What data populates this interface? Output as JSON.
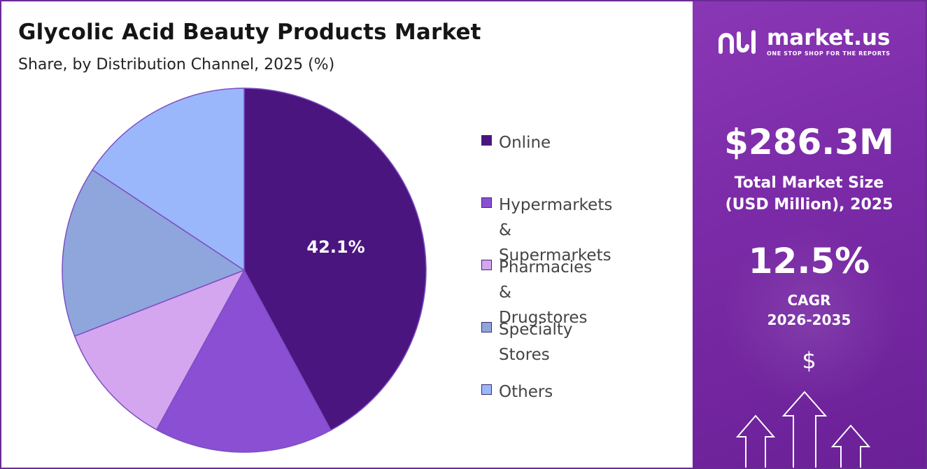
{
  "header": {
    "title": "Glycolic Acid Beauty Products Market",
    "subtitle": "Share, by Distribution Channel, 2025 (%)"
  },
  "chart_data": {
    "type": "pie",
    "title": "Glycolic Acid Beauty Products Market",
    "subtitle": "Share, by Distribution Channel, 2025 (%)",
    "categories": [
      "Online",
      "Hypermarkets &\nSupermarkets",
      "Pharmacies &\nDrugstores",
      "Specialty Stores",
      "Others"
    ],
    "values": [
      42.1,
      15.9,
      11.1,
      15.2,
      15.7
    ],
    "colors": [
      "#4b1580",
      "#8a4fd2",
      "#d4a6ef",
      "#8ea6dc",
      "#9bb7fb"
    ],
    "data_labels": [
      "42.1%",
      "",
      "",
      "",
      ""
    ],
    "start_angle_deg": 0,
    "direction": "clockwise",
    "legend_position": "right"
  },
  "sidebar": {
    "brand": "market.us",
    "tagline": "ONE STOP SHOP FOR THE REPORTS",
    "market_size_value": "$286.3M",
    "market_size_label": "Total Market Size\n(USD Million), 2025",
    "cagr_value": "12.5%",
    "cagr_label": "CAGR\n2026-2035",
    "currency_symbol": "$",
    "logo_icon": "market-us-logo-icon",
    "decor_icon": "growth-arrows-icon",
    "colors": {
      "panel": "#7a2aa6",
      "text": "#ffffff",
      "border": "#6a2a93"
    }
  }
}
